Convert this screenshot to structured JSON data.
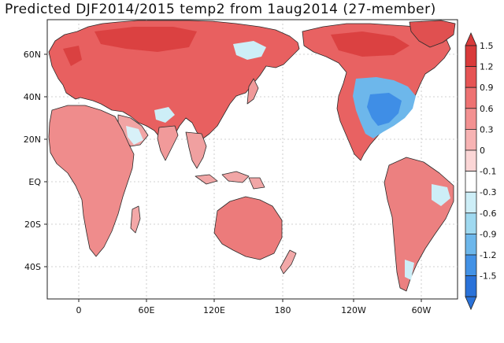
{
  "title": "Predicted DJF2014/2015 temp2 from 1aug2014 (27-member)",
  "axes": {
    "lat_labels": [
      "60N",
      "40N",
      "20N",
      "EQ",
      "20S",
      "40S"
    ],
    "lon_labels": [
      "0",
      "60E",
      "120E",
      "180",
      "120W",
      "60W"
    ]
  },
  "colorbar": {
    "labels": [
      "1.5",
      "1.2",
      "0.9",
      "0.6",
      "0.3",
      "0",
      "-0.1",
      "-0.3",
      "-0.6",
      "-0.9",
      "-1.2",
      "-1.5"
    ],
    "colors": [
      "#d93a3a",
      "#e65454",
      "#ee7272",
      "#f39191",
      "#f7b3b3",
      "#fbd6d6",
      "#ffffff",
      "#cdeef7",
      "#9fd9f0",
      "#6db7eb",
      "#4392e6",
      "#2a72d9"
    ]
  },
  "palette": {
    "ocean": "#ffffff",
    "warm_strong": "#e45a5a",
    "warm": "#ee8585",
    "warm_light": "#f5aeae",
    "cool_light": "#cdeef7",
    "cool": "#6db7eb",
    "cool_strong": "#3f8ee6",
    "border": "#222222",
    "grid": "#bbbbbb"
  }
}
